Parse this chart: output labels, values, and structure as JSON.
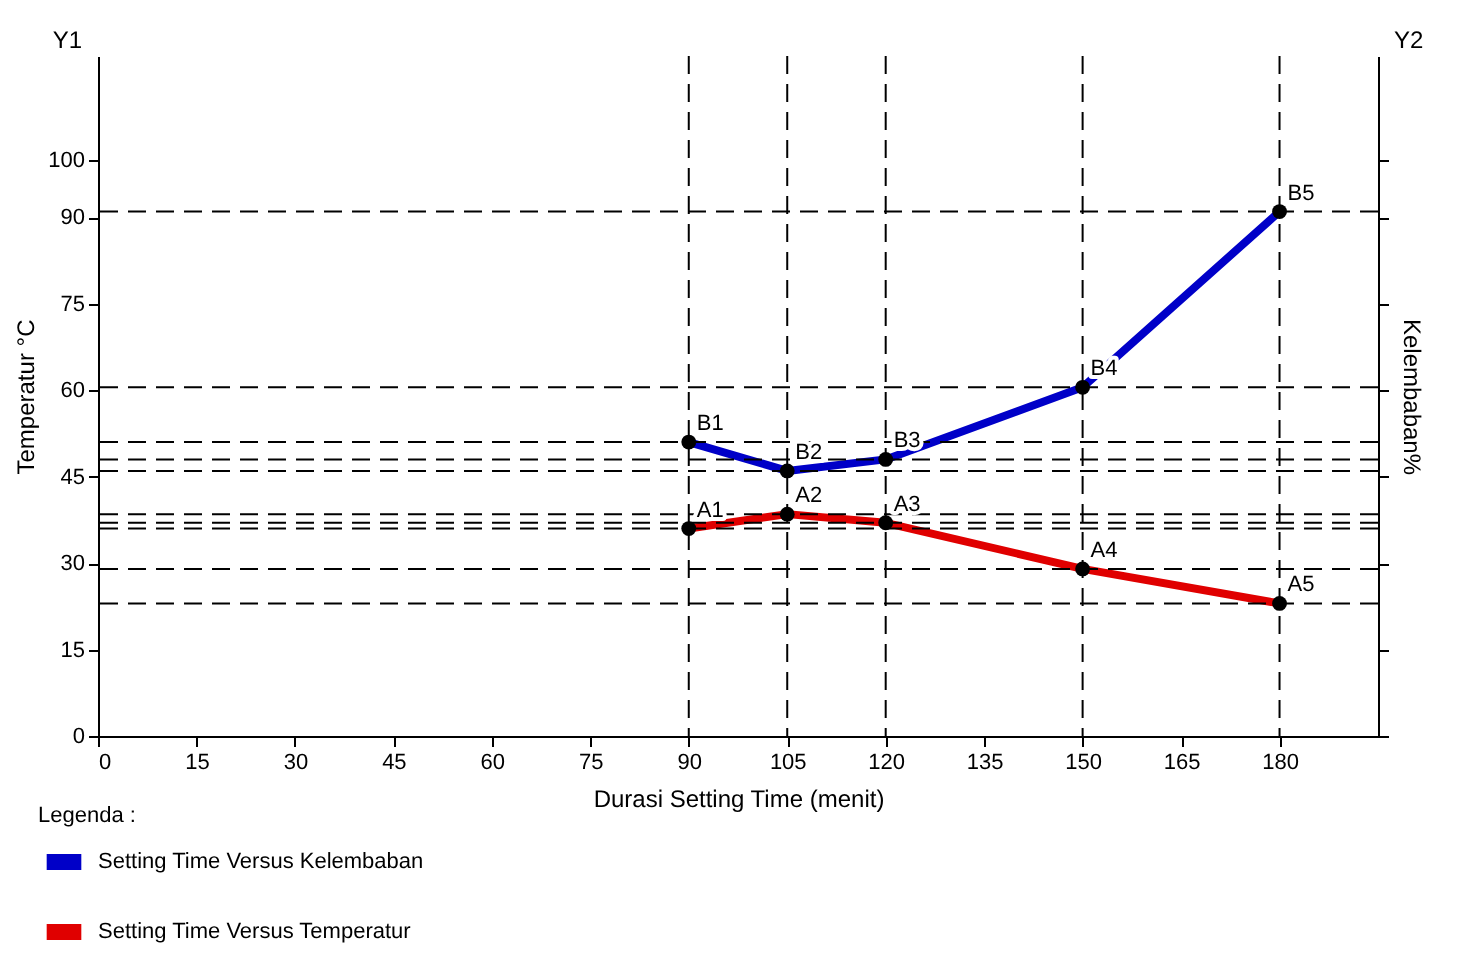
{
  "chart_data": {
    "type": "line",
    "xlabel": "Durasi Setting Time (menit)",
    "ylabel": "Temperatur °C",
    "y2label": "Kelembaban%",
    "legend_title": "Legenda :",
    "x": [
      90,
      105,
      120,
      150,
      180
    ],
    "series": [
      {
        "name": "Setting Time Versus Kelembaban",
        "color": "#0000c8",
        "values": [
          51,
          46,
          48,
          60.5,
          91
        ]
      },
      {
        "name": "Setting Time Versus Temperatur",
        "color": "#e00000",
        "values": [
          36,
          38.5,
          37,
          29,
          23
        ]
      }
    ],
    "xlim": [
      0,
      195
    ],
    "xticks": [
      0,
      15,
      30,
      45,
      60,
      75,
      90,
      105,
      120,
      135,
      150,
      165,
      180
    ],
    "ylim": [
      0,
      118
    ],
    "yticks": [
      0,
      15,
      30,
      45,
      60,
      75,
      90,
      100
    ],
    "grid": false,
    "legend": "bottom left",
    "marker": "circle",
    "line_style": "solid",
    "ref_lines": [
      {
        "axis": "x",
        "value": 90,
        "color": "#000000",
        "line_style": "dashed"
      },
      {
        "axis": "x",
        "value": 105,
        "color": "#000000",
        "line_style": "dashed"
      },
      {
        "axis": "x",
        "value": 120,
        "color": "#000000",
        "line_style": "dashed"
      },
      {
        "axis": "x",
        "value": 150,
        "color": "#000000",
        "line_style": "dashed"
      },
      {
        "axis": "x",
        "value": 180,
        "color": "#000000",
        "line_style": "dashed"
      },
      {
        "axis": "y",
        "value": 36,
        "color": "#000000",
        "line_style": "dashed"
      },
      {
        "axis": "y",
        "value": 38.5,
        "color": "#000000",
        "line_style": "dashed"
      },
      {
        "axis": "y",
        "value": 37,
        "color": "#000000",
        "line_style": "dashed"
      },
      {
        "axis": "y",
        "value": 29,
        "color": "#000000",
        "line_style": "dashed"
      },
      {
        "axis": "y",
        "value": 23,
        "color": "#000000",
        "line_style": "dashed"
      },
      {
        "axis": "y",
        "value": 51,
        "color": "#000000",
        "line_style": "dashed"
      },
      {
        "axis": "y",
        "value": 46,
        "color": "#000000",
        "line_style": "dashed"
      },
      {
        "axis": "y",
        "value": 48,
        "color": "#000000",
        "line_style": "dashed"
      },
      {
        "axis": "y",
        "value": 60.5,
        "color": "#000000",
        "line_style": "dashed"
      },
      {
        "axis": "y",
        "value": 91,
        "color": "#000000",
        "line_style": "dashed"
      }
    ],
    "annotations": [
      "Y1",
      "Y2",
      {
        "text": "B1",
        "x": 90,
        "y": 51
      },
      {
        "text": "B2",
        "x": 105,
        "y": 46
      },
      {
        "text": "B3",
        "x": 120,
        "y": 48
      },
      {
        "text": "B4",
        "x": 150,
        "y": 60.5
      },
      {
        "text": "B5",
        "x": 180,
        "y": 91
      },
      {
        "text": "A1",
        "x": 90,
        "y": 36
      },
      {
        "text": "A2",
        "x": 105,
        "y": 38.5
      },
      {
        "text": "A3",
        "x": 120,
        "y": 37
      },
      {
        "text": "A4",
        "x": 150,
        "y": 29
      },
      {
        "text": "A5",
        "x": 180,
        "y": 23
      }
    ]
  }
}
